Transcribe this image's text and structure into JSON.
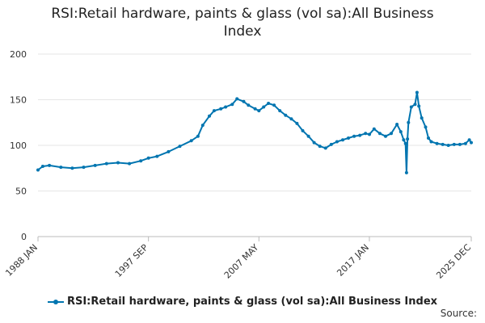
{
  "title_line1": "RSI:Retail hardware, paints & glass (vol sa):All Business",
  "title_line2": "Index",
  "source": "Source:",
  "chart_data": {
    "type": "line",
    "title": "RSI:Retail hardware, paints & glass (vol sa):All Business Index",
    "xlabel": "",
    "ylabel": "",
    "ylim": [
      0,
      200
    ],
    "yticks": [
      0,
      50,
      100,
      150,
      200
    ],
    "xticks": [
      "1988 JAN",
      "1997 SEP",
      "2007 MAY",
      "2017 JAN",
      "2025 DEC"
    ],
    "grid": true,
    "legend": "bottom",
    "color": "#0075B0",
    "series": [
      {
        "name": "RSI:Retail hardware, paints & glass (vol sa):All Business Index",
        "points": [
          [
            "1988-01",
            73
          ],
          [
            "1988-06",
            77
          ],
          [
            "1989-01",
            78
          ],
          [
            "1990-01",
            76
          ],
          [
            "1991-01",
            75
          ],
          [
            "1992-01",
            76
          ],
          [
            "1993-01",
            78
          ],
          [
            "1994-01",
            80
          ],
          [
            "1995-01",
            81
          ],
          [
            "1996-01",
            80
          ],
          [
            "1997-01",
            83
          ],
          [
            "1997-09",
            86
          ],
          [
            "1998-06",
            88
          ],
          [
            "1999-06",
            93
          ],
          [
            "2000-06",
            99
          ],
          [
            "2001-06",
            105
          ],
          [
            "2002-01",
            110
          ],
          [
            "2002-06",
            122
          ],
          [
            "2003-01",
            132
          ],
          [
            "2003-06",
            138
          ],
          [
            "2004-01",
            140
          ],
          [
            "2004-06",
            142
          ],
          [
            "2005-01",
            145
          ],
          [
            "2005-06",
            151
          ],
          [
            "2006-01",
            148
          ],
          [
            "2006-06",
            144
          ],
          [
            "2007-01",
            140
          ],
          [
            "2007-05",
            138
          ],
          [
            "2007-10",
            142
          ],
          [
            "2008-03",
            146
          ],
          [
            "2008-09",
            144
          ],
          [
            "2009-03",
            138
          ],
          [
            "2009-09",
            133
          ],
          [
            "2010-03",
            129
          ],
          [
            "2010-09",
            124
          ],
          [
            "2011-03",
            116
          ],
          [
            "2011-09",
            110
          ],
          [
            "2012-03",
            103
          ],
          [
            "2012-09",
            99
          ],
          [
            "2013-03",
            97
          ],
          [
            "2013-09",
            101
          ],
          [
            "2014-03",
            104
          ],
          [
            "2014-09",
            106
          ],
          [
            "2015-03",
            108
          ],
          [
            "2015-09",
            110
          ],
          [
            "2016-03",
            111
          ],
          [
            "2016-09",
            113
          ],
          [
            "2017-01",
            112
          ],
          [
            "2017-06",
            118
          ],
          [
            "2017-12",
            113
          ],
          [
            "2018-06",
            110
          ],
          [
            "2018-12",
            113
          ],
          [
            "2019-06",
            123
          ],
          [
            "2019-10",
            115
          ],
          [
            "2020-01",
            106
          ],
          [
            "2020-03",
            102
          ],
          [
            "2020-04",
            70
          ],
          [
            "2020-05",
            107
          ],
          [
            "2020-06",
            125
          ],
          [
            "2020-09",
            142
          ],
          [
            "2021-01",
            145
          ],
          [
            "2021-03",
            158
          ],
          [
            "2021-05",
            143
          ],
          [
            "2021-08",
            130
          ],
          [
            "2021-12",
            120
          ],
          [
            "2022-03",
            108
          ],
          [
            "2022-06",
            104
          ],
          [
            "2022-12",
            102
          ],
          [
            "2023-06",
            101
          ],
          [
            "2023-12",
            100
          ],
          [
            "2024-06",
            101
          ],
          [
            "2024-12",
            101
          ],
          [
            "2025-06",
            102
          ],
          [
            "2025-10",
            106
          ],
          [
            "2025-12",
            103
          ]
        ]
      }
    ]
  }
}
